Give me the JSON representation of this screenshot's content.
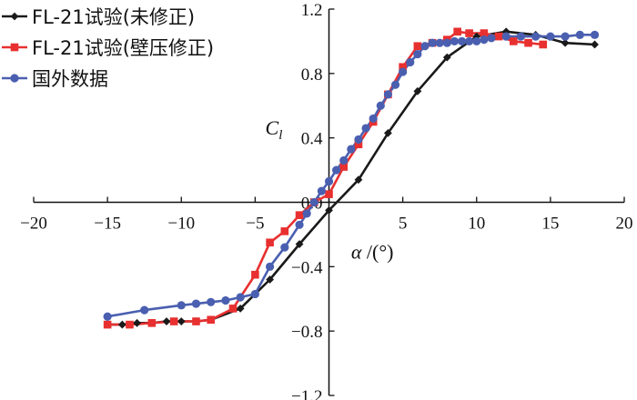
{
  "chart_data": {
    "type": "line",
    "title": "",
    "xlabel_symbol": "α",
    "xlabel_unit": " /(°)",
    "ylabel_symbol": "C",
    "ylabel_sub": "l",
    "xlim": [
      -20,
      20
    ],
    "ylim": [
      -1.2,
      1.2
    ],
    "x_ticks": [
      -20,
      -15,
      -10,
      -5,
      0,
      5,
      10,
      15,
      20
    ],
    "x_tick_labels": [
      "−20",
      "−15",
      "−10",
      "−5",
      "0",
      "5",
      "10",
      "15",
      "20"
    ],
    "y_ticks": [
      -1.2,
      -0.8,
      -0.4,
      0.0,
      0.4,
      0.8,
      1.2
    ],
    "y_tick_labels": [
      "−1.2",
      "−0.8",
      "−0.4",
      "0.0",
      "0.4",
      "0.8",
      "1.2"
    ],
    "legend_position": "top-left",
    "series": [
      {
        "name": "FL-21试验(未修正)",
        "color": "#1a1a1a",
        "marker": "diamond",
        "x": [
          -15,
          -14,
          -13,
          -12,
          -11,
          -10,
          -9,
          -8,
          -6,
          -4,
          -2,
          0,
          2,
          4,
          6,
          8,
          10,
          12,
          14,
          16,
          18
        ],
        "y": [
          -0.76,
          -0.76,
          -0.75,
          -0.75,
          -0.74,
          -0.74,
          -0.74,
          -0.73,
          -0.66,
          -0.48,
          -0.26,
          -0.05,
          0.14,
          0.43,
          0.69,
          0.9,
          1.03,
          1.06,
          1.04,
          0.99,
          0.98
        ]
      },
      {
        "name": "FL-21试验(壁压修正)",
        "color": "#e83030",
        "marker": "square",
        "x": [
          -15,
          -13.5,
          -12,
          -10.5,
          -9,
          -8,
          -6.5,
          -5,
          -4,
          -3,
          -2,
          -1,
          0,
          1,
          2,
          3,
          4,
          5,
          6,
          7,
          8,
          8.7,
          9.5,
          10.5,
          11.5,
          12.5,
          13.5,
          14.5
        ],
        "y": [
          -0.76,
          -0.76,
          -0.75,
          -0.74,
          -0.74,
          -0.73,
          -0.66,
          -0.45,
          -0.25,
          -0.18,
          -0.08,
          0.0,
          0.05,
          0.22,
          0.36,
          0.5,
          0.67,
          0.84,
          0.97,
          0.99,
          1.01,
          1.06,
          1.05,
          1.05,
          1.03,
          1.0,
          0.99,
          0.98
        ]
      },
      {
        "name": "国外数据",
        "color": "#4a5fb0",
        "marker": "circle",
        "x": [
          -15,
          -12.5,
          -10,
          -9,
          -8,
          -7,
          -6,
          -5,
          -4,
          -3,
          -2,
          -1.5,
          -1,
          -0.5,
          0,
          0.5,
          1,
          1.5,
          2,
          2.5,
          3,
          3.5,
          4,
          4.5,
          5,
          5.5,
          6,
          6.5,
          7,
          7.5,
          8,
          8.5,
          9,
          9.5,
          10,
          10.5,
          11,
          12,
          13,
          14,
          15,
          16,
          17,
          18
        ],
        "y": [
          -0.71,
          -0.67,
          -0.64,
          -0.63,
          -0.62,
          -0.61,
          -0.59,
          -0.57,
          -0.4,
          -0.28,
          -0.14,
          -0.07,
          0.0,
          0.07,
          0.13,
          0.2,
          0.26,
          0.33,
          0.39,
          0.46,
          0.52,
          0.6,
          0.67,
          0.73,
          0.81,
          0.87,
          0.92,
          0.97,
          0.99,
          0.99,
          0.99,
          1.0,
          1.0,
          1.0,
          1.0,
          1.01,
          1.02,
          1.03,
          1.03,
          1.03,
          1.03,
          1.03,
          1.04,
          1.04
        ]
      }
    ]
  }
}
